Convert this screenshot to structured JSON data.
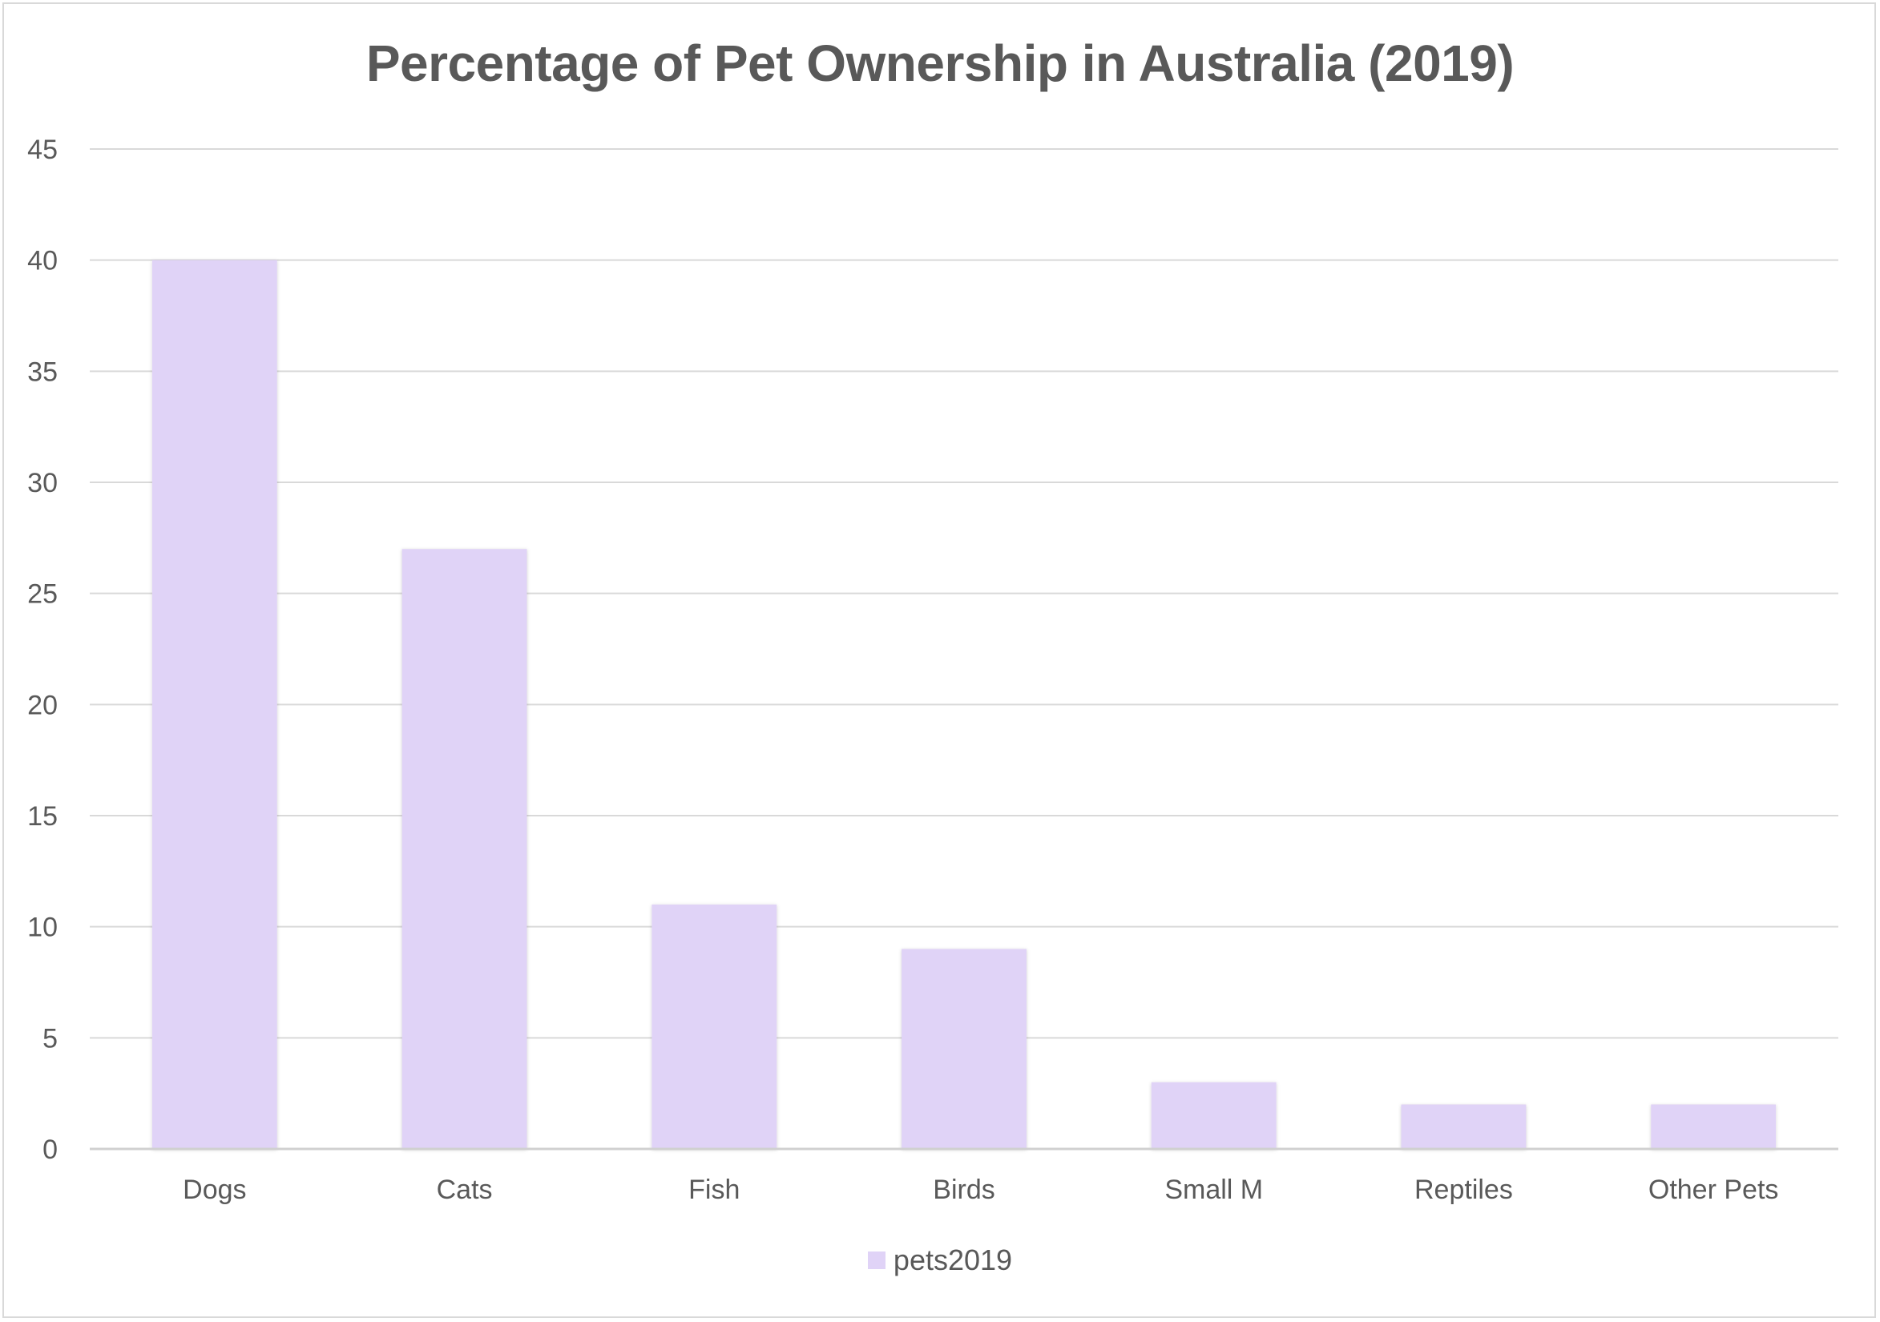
{
  "chart_data": {
    "type": "bar",
    "title": "Percentage of Pet Ownership in Australia (2019)",
    "categories": [
      "Dogs",
      "Cats",
      "Fish",
      "Birds",
      "Small M",
      "Reptiles",
      "Other Pets"
    ],
    "series": [
      {
        "name": "pets2019",
        "values": [
          40,
          27,
          11,
          9,
          3,
          2,
          2
        ],
        "color": "#e0d3f7"
      }
    ],
    "xlabel": "",
    "ylabel": "",
    "ylim": [
      0,
      45
    ],
    "yticks": [
      0,
      5,
      10,
      15,
      20,
      25,
      30,
      35,
      40,
      45
    ],
    "grid": true,
    "legend_position": "bottom"
  },
  "colors": {
    "bar": "#e0d3f7",
    "grid": "#d9d9d9",
    "axis": "#d0d0d0",
    "text": "#595959"
  }
}
